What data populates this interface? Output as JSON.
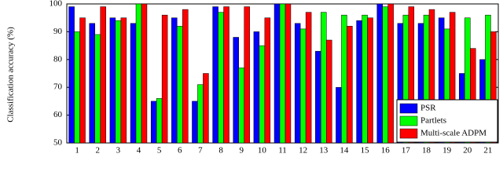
{
  "chart_data": {
    "type": "bar",
    "y_label": "Classification accuracy (%)",
    "categories": [
      "1",
      "2",
      "3",
      "4",
      "5",
      "6",
      "7",
      "8",
      "9",
      "10",
      "11",
      "12",
      "13",
      "14",
      "15",
      "16",
      "17",
      "18",
      "19",
      "20",
      "21"
    ],
    "series": [
      {
        "name": "PSR",
        "color": "#0000ff",
        "values": [
          99,
          93,
          95,
          93,
          65,
          95,
          65,
          99,
          88,
          90,
          100,
          93,
          83,
          70,
          94,
          100,
          93,
          93,
          95,
          75,
          80
        ]
      },
      {
        "name": "Partlets",
        "color": "#00ff00",
        "values": [
          90,
          89,
          94,
          100,
          66,
          92,
          71,
          97,
          77,
          85,
          100,
          91,
          97,
          96,
          96,
          99,
          96,
          96,
          91,
          95,
          96
        ]
      },
      {
        "name": "Multi-scale ADPM",
        "color": "#ff0000",
        "values": [
          95,
          99,
          95,
          100,
          96,
          98,
          75,
          99,
          99,
          95,
          100,
          97,
          87,
          92,
          95,
          100,
          99,
          98,
          97,
          84,
          90
        ]
      }
    ],
    "ylim": [
      50,
      100
    ],
    "yticks": [
      50,
      60,
      70,
      80,
      90,
      100
    ],
    "legend": "lower right"
  }
}
